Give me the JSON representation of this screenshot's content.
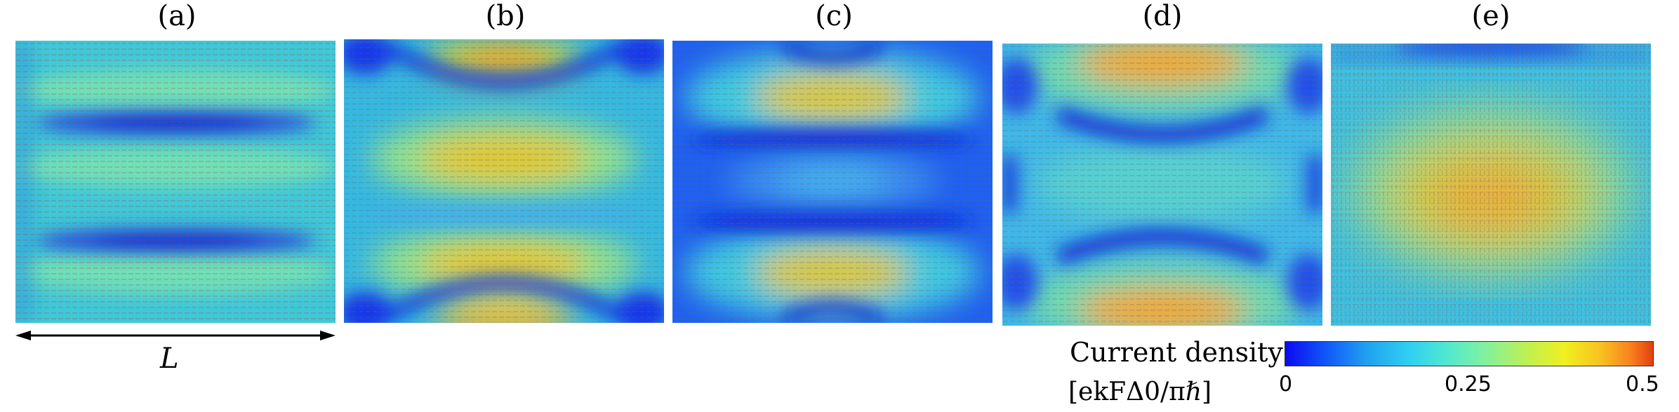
{
  "chart_data": {
    "type": "heatmap",
    "panels": [
      {
        "label": "(a)",
        "pattern": "two thin low-density horizontal stripes on uniform moderate background; dense horizontal current arrows"
      },
      {
        "label": "(b)",
        "pattern": "high-density lobes at top, two in middle and bottom; arcs of low density near top and bottom edges"
      },
      {
        "label": "(c)",
        "pattern": "low-density central band; high-density lobes near top and bottom"
      },
      {
        "label": "(d)",
        "pattern": "high-density lobes at top and bottom edges; low-density arcs; moderate center"
      },
      {
        "label": "(e)",
        "pattern": "broad central high-density region with vertical striations; low density at top edge"
      }
    ],
    "scale_bar_label": "L",
    "colorbar": {
      "title": "Current density",
      "unit": "[ekFΔ0/πℏ]",
      "ticks": [
        "0",
        "0.25",
        "0.5"
      ],
      "range": [
        0,
        0.5
      ],
      "colormap": "jet"
    }
  }
}
